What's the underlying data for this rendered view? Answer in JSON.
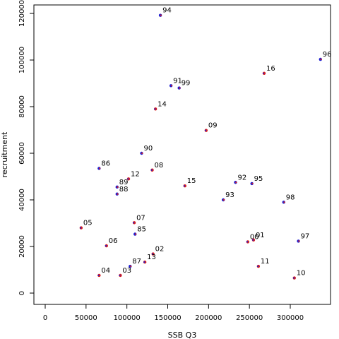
{
  "chart_data": {
    "type": "scatter",
    "title": "",
    "xlabel": "SSB Q3",
    "ylabel": "recruitment",
    "xlim": [
      0,
      350000
    ],
    "ylim": [
      0,
      120000
    ],
    "x_ticks": [
      0,
      50000,
      100000,
      150000,
      200000,
      250000,
      300000
    ],
    "y_ticks": [
      0,
      20000,
      40000,
      60000,
      80000,
      100000,
      120000
    ],
    "grid": false,
    "legend": "none",
    "colors": {
      "early": "#1f1fd0",
      "late": "#d81e1e",
      "axis": "#000000"
    },
    "points": [
      {
        "label": "85",
        "x": 110000,
        "y": 25300,
        "era": "early"
      },
      {
        "label": "86",
        "x": 66000,
        "y": 53500,
        "era": "early"
      },
      {
        "label": "87",
        "x": 104000,
        "y": 11500,
        "era": "early"
      },
      {
        "label": "88",
        "x": 88000,
        "y": 42500,
        "era": "early"
      },
      {
        "label": "89",
        "x": 88000,
        "y": 45500,
        "era": "early"
      },
      {
        "label": "90",
        "x": 118000,
        "y": 60000,
        "era": "early"
      },
      {
        "label": "91",
        "x": 154000,
        "y": 89000,
        "era": "early"
      },
      {
        "label": "92",
        "x": 233000,
        "y": 47500,
        "era": "early"
      },
      {
        "label": "93",
        "x": 218000,
        "y": 40000,
        "era": "early"
      },
      {
        "label": "94",
        "x": 141000,
        "y": 119200,
        "era": "early"
      },
      {
        "label": "95",
        "x": 253000,
        "y": 47000,
        "era": "early"
      },
      {
        "label": "96",
        "x": 337000,
        "y": 100300,
        "era": "early"
      },
      {
        "label": "97",
        "x": 310000,
        "y": 22300,
        "era": "early"
      },
      {
        "label": "98",
        "x": 292000,
        "y": 39000,
        "era": "early"
      },
      {
        "label": "99",
        "x": 164000,
        "y": 88000,
        "era": "early"
      },
      {
        "label": "00",
        "x": 248000,
        "y": 22000,
        "era": "late"
      },
      {
        "label": "01",
        "x": 255000,
        "y": 22800,
        "era": "late"
      },
      {
        "label": "02",
        "x": 132000,
        "y": 16800,
        "era": "late"
      },
      {
        "label": "03",
        "x": 92000,
        "y": 7600,
        "era": "late"
      },
      {
        "label": "04",
        "x": 66000,
        "y": 7600,
        "era": "late"
      },
      {
        "label": "05",
        "x": 44000,
        "y": 28000,
        "era": "late"
      },
      {
        "label": "06",
        "x": 75000,
        "y": 20300,
        "era": "late"
      },
      {
        "label": "07",
        "x": 109000,
        "y": 30200,
        "era": "late"
      },
      {
        "label": "08",
        "x": 131000,
        "y": 52800,
        "era": "late"
      },
      {
        "label": "09",
        "x": 197000,
        "y": 69800,
        "era": "late"
      },
      {
        "label": "10",
        "x": 305000,
        "y": 6500,
        "era": "late"
      },
      {
        "label": "11",
        "x": 261000,
        "y": 11500,
        "era": "late"
      },
      {
        "label": "12",
        "x": 102000,
        "y": 49000,
        "era": "late"
      },
      {
        "label": "13",
        "x": 122000,
        "y": 13300,
        "era": "late"
      },
      {
        "label": "14",
        "x": 135000,
        "y": 79000,
        "era": "late"
      },
      {
        "label": "15",
        "x": 171000,
        "y": 46000,
        "era": "late"
      },
      {
        "label": "16",
        "x": 268000,
        "y": 94300,
        "era": "late"
      }
    ]
  }
}
